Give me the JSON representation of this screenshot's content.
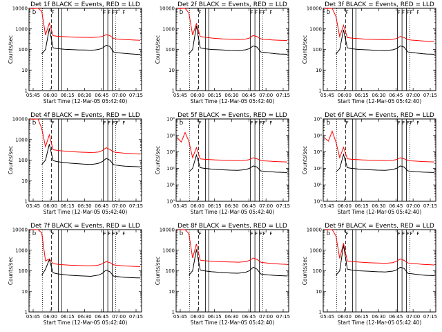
{
  "chart_data": [
    {
      "type": "line",
      "title": "Det 1f BLACK = Events, RED = LLD",
      "xlabel": "Start Time (12-Mar-05 05:42:40)",
      "ylabel": "Counts/sec",
      "yscale": "log",
      "ytick_labels": [
        "1",
        "10",
        "100",
        "1000",
        "10000"
      ],
      "ylim": [
        1,
        10000
      ],
      "xtick_labels": [
        "05:45",
        "06:00",
        "06:15",
        "06:30",
        "06:45",
        "07:00",
        "07:15"
      ],
      "marker_letters": [
        "D",
        "F",
        "F",
        "F",
        "F",
        "F",
        "F"
      ],
      "series": [
        {
          "color": "#000000",
          "values": [
            null,
            null,
            null,
            60,
            100,
            1050,
            120,
            110,
            106,
            102,
            100,
            98,
            96,
            95,
            94,
            93,
            92,
            95,
            100,
            115,
            160,
            140,
            75,
            70,
            67,
            64,
            62,
            60,
            58,
            57
          ]
        },
        {
          "color": "#ff0000",
          "values": [
            9800,
            9800,
            10500,
            7200,
            500,
            1900,
            470,
            440,
            430,
            420,
            410,
            400,
            395,
            390,
            388,
            386,
            384,
            390,
            400,
            430,
            520,
            470,
            340,
            320,
            310,
            300,
            295,
            290,
            285,
            280
          ]
        }
      ]
    },
    {
      "type": "line",
      "title": "Det 2f BLACK = Events, RED = LLD",
      "xlabel": "Start Time (12-Mar-05 05:42:40)",
      "ylabel": "Counts/sec",
      "yscale": "log",
      "ytick_labels": [
        "1",
        "10",
        "100",
        "1000",
        "10000"
      ],
      "ylim": [
        1,
        10000
      ],
      "xtick_labels": [
        "05:45",
        "06:00",
        "06:15",
        "06:30",
        "06:45",
        "07:00",
        "07:15"
      ],
      "marker_letters": [
        "D",
        "F",
        "F",
        "F",
        "F",
        "F",
        "F"
      ],
      "series": [
        {
          "color": "#000000",
          "values": [
            null,
            null,
            null,
            60,
            100,
            1400,
            120,
            110,
            104,
            100,
            98,
            96,
            94,
            92,
            90,
            89,
            88,
            92,
            96,
            110,
            150,
            130,
            75,
            72,
            68,
            65,
            62,
            60,
            59,
            58
          ]
        },
        {
          "color": "#ff0000",
          "values": [
            9800,
            9800,
            10500,
            6000,
            500,
            1800,
            430,
            400,
            380,
            360,
            345,
            335,
            325,
            320,
            315,
            310,
            305,
            310,
            320,
            360,
            480,
            420,
            330,
            310,
            300,
            290,
            285,
            280,
            275,
            270
          ]
        }
      ]
    },
    {
      "type": "line",
      "title": "Det 3f BLACK = Events, RED = LLD",
      "xlabel": "Start Time (12-Mar-05 05:42:40)",
      "ylabel": "Counts/sec",
      "yscale": "log",
      "ytick_labels": [
        "1",
        "10",
        "100",
        "1000",
        "10000"
      ],
      "ylim": [
        1,
        10000
      ],
      "xtick_labels": [
        "05:45",
        "06:00",
        "06:15",
        "06:30",
        "06:45",
        "07:00",
        "07:15"
      ],
      "marker_letters": [
        "D",
        "F",
        "F",
        "F",
        "F",
        "F",
        "F"
      ],
      "series": [
        {
          "color": "#000000",
          "values": [
            null,
            null,
            null,
            60,
            100,
            900,
            120,
            110,
            104,
            100,
            98,
            96,
            94,
            92,
            90,
            89,
            88,
            92,
            96,
            110,
            150,
            130,
            75,
            72,
            68,
            65,
            62,
            60,
            59,
            58
          ]
        },
        {
          "color": "#ff0000",
          "values": [
            9800,
            9800,
            10500,
            4000,
            420,
            1500,
            380,
            360,
            345,
            335,
            325,
            318,
            312,
            308,
            304,
            300,
            298,
            302,
            310,
            340,
            430,
            380,
            300,
            285,
            275,
            265,
            258,
            252,
            248,
            245
          ]
        }
      ]
    },
    {
      "type": "line",
      "title": "Det 4f BLACK = Events, RED = LLD",
      "xlabel": "Start Time (12-Mar-05 05:42:40)",
      "ylabel": "Counts/sec",
      "yscale": "log",
      "ytick_labels": [
        "1",
        "10",
        "100",
        "1000",
        "10000"
      ],
      "ylim": [
        1,
        10000
      ],
      "xtick_labels": [
        "05:45",
        "06:00",
        "06:15",
        "06:30",
        "06:45",
        "07:00",
        "07:15"
      ],
      "marker_letters": [
        "D",
        "F",
        "F",
        "F",
        "F",
        "F",
        "F"
      ],
      "series": [
        {
          "color": "#000000",
          "values": [
            null,
            null,
            null,
            60,
            100,
            600,
            95,
            85,
            80,
            76,
            73,
            70,
            68,
            66,
            64,
            63,
            62,
            65,
            70,
            85,
            120,
            100,
            60,
            56,
            53,
            51,
            50,
            49,
            48,
            47
          ]
        },
        {
          "color": "#ff0000",
          "values": [
            9800,
            9800,
            10500,
            3500,
            450,
            1700,
            320,
            300,
            285,
            275,
            265,
            258,
            252,
            246,
            242,
            238,
            236,
            240,
            250,
            290,
            400,
            330,
            250,
            235,
            225,
            215,
            210,
            205,
            200,
            198
          ]
        }
      ]
    },
    {
      "type": "line",
      "title": "Det 5f BLACK = Events, RED = LLD",
      "xlabel": "Start Time (12-Mar-05 05:42:40)",
      "ylabel": "Counts/sec",
      "yscale": "log",
      "ytick_labels": [
        "10⁰",
        "10¹",
        "10²",
        "10³",
        "10⁴",
        "10⁵"
      ],
      "ylim": [
        1,
        100000
      ],
      "xtick_labels": [
        "05:45",
        "06:00",
        "06:15",
        "06:30",
        "06:45",
        "07:00",
        "07:15"
      ],
      "marker_letters": [
        "D",
        "F",
        "F",
        "F",
        "F",
        "F",
        "F"
      ],
      "series": [
        {
          "color": "#000000",
          "values": [
            null,
            null,
            null,
            60,
            100,
            650,
            110,
            100,
            95,
            90,
            87,
            84,
            82,
            80,
            78,
            77,
            76,
            80,
            85,
            100,
            140,
            120,
            70,
            66,
            63,
            61,
            59,
            58,
            57,
            56
          ]
        },
        {
          "color": "#ff0000",
          "values": [
            7000,
            4000,
            15000,
            4500,
            450,
            1800,
            380,
            360,
            345,
            335,
            325,
            318,
            312,
            308,
            304,
            300,
            298,
            302,
            310,
            340,
            440,
            380,
            300,
            285,
            275,
            265,
            258,
            252,
            248,
            245
          ]
        }
      ]
    },
    {
      "type": "line",
      "title": "Det 6f BLACK = Events, RED = LLD",
      "xlabel": "Start Time (12-Mar-05 05:42:40)",
      "ylabel": "Counts/sec",
      "yscale": "log",
      "ytick_labels": [
        "10⁰",
        "10¹",
        "10²",
        "10³",
        "10⁴",
        "10⁵"
      ],
      "ylim": [
        1,
        100000
      ],
      "xtick_labels": [
        "05:45",
        "06:00",
        "06:15",
        "06:30",
        "06:45",
        "07:00",
        "07:15"
      ],
      "marker_letters": [
        "D",
        "F",
        "F",
        "F",
        "F",
        "F",
        "F"
      ],
      "series": [
        {
          "color": "#000000",
          "values": [
            null,
            null,
            null,
            60,
            100,
            700,
            110,
            100,
            95,
            90,
            87,
            84,
            82,
            80,
            78,
            77,
            76,
            80,
            85,
            100,
            140,
            120,
            70,
            66,
            63,
            61,
            59,
            58,
            57,
            56
          ]
        },
        {
          "color": "#ff0000",
          "values": [
            7000,
            4500,
            18000,
            4000,
            450,
            1900,
            380,
            360,
            345,
            335,
            325,
            318,
            312,
            308,
            304,
            300,
            298,
            302,
            310,
            340,
            440,
            380,
            300,
            285,
            275,
            265,
            258,
            252,
            248,
            245
          ]
        }
      ]
    },
    {
      "type": "line",
      "title": "Det 7f BLACK = Events, RED = LLD",
      "xlabel": "Start Time (12-Mar-05 05:42:40)",
      "ylabel": "Counts/sec",
      "yscale": "log",
      "ytick_labels": [
        "1",
        "10",
        "100",
        "1000",
        "10000"
      ],
      "ylim": [
        1,
        10000
      ],
      "xtick_labels": [
        "05:45",
        "06:00",
        "06:15",
        "06:30",
        "06:45",
        "07:00",
        "07:15"
      ],
      "marker_letters": [
        "D",
        "F",
        "F",
        "F",
        "F",
        "F",
        "F"
      ],
      "series": [
        {
          "color": "#000000",
          "values": [
            null,
            null,
            null,
            60,
            120,
            350,
            80,
            72,
            68,
            65,
            62,
            60,
            58,
            57,
            56,
            55,
            54,
            58,
            62,
            75,
            110,
            90,
            55,
            52,
            50,
            48,
            47,
            46,
            45,
            45
          ]
        },
        {
          "color": "#ff0000",
          "values": [
            9800,
            9800,
            10500,
            7000,
            300,
            380,
            220,
            210,
            200,
            195,
            190,
            186,
            183,
            180,
            178,
            176,
            175,
            180,
            190,
            220,
            280,
            250,
            195,
            185,
            178,
            172,
            168,
            165,
            163,
            160
          ]
        }
      ]
    },
    {
      "type": "line",
      "title": "Det 8f BLACK = Events, RED = LLD",
      "xlabel": "Start Time (12-Mar-05 05:42:40)",
      "ylabel": "Counts/sec",
      "yscale": "log",
      "ytick_labels": [
        "1",
        "10",
        "100",
        "1000",
        "10000"
      ],
      "ylim": [
        1,
        10000
      ],
      "xtick_labels": [
        "05:45",
        "06:00",
        "06:15",
        "06:30",
        "06:45",
        "07:00",
        "07:15"
      ],
      "marker_letters": [
        "D",
        "F",
        "F",
        "F",
        "F",
        "F",
        "F"
      ],
      "series": [
        {
          "color": "#000000",
          "values": [
            null,
            null,
            null,
            60,
            100,
            1100,
            110,
            100,
            95,
            90,
            87,
            84,
            82,
            80,
            78,
            77,
            76,
            80,
            85,
            100,
            150,
            120,
            70,
            66,
            63,
            61,
            59,
            58,
            57,
            56
          ]
        },
        {
          "color": "#ff0000",
          "values": [
            9800,
            9800,
            10500,
            6500,
            420,
            2000,
            330,
            310,
            300,
            292,
            285,
            280,
            275,
            272,
            268,
            265,
            262,
            268,
            280,
            320,
            420,
            360,
            260,
            245,
            235,
            225,
            218,
            212,
            208,
            205
          ]
        }
      ]
    },
    {
      "type": "line",
      "title": "Det 9f BLACK = Events, RED = LLD",
      "xlabel": "Start Time (12-Mar-05 05:42:40)",
      "ylabel": "Counts/sec",
      "yscale": "log",
      "ytick_labels": [
        "1",
        "10",
        "100",
        "1000",
        "10000"
      ],
      "ylim": [
        1,
        10000
      ],
      "xtick_labels": [
        "05:45",
        "06:00",
        "06:15",
        "06:30",
        "06:45",
        "07:00",
        "07:15"
      ],
      "marker_letters": [
        "D",
        "F",
        "F",
        "F",
        "F",
        "F",
        "F"
      ],
      "series": [
        {
          "color": "#000000",
          "values": [
            null,
            null,
            null,
            60,
            100,
            1800,
            120,
            110,
            104,
            100,
            98,
            96,
            94,
            92,
            90,
            89,
            88,
            92,
            96,
            110,
            150,
            130,
            75,
            72,
            68,
            65,
            62,
            60,
            59,
            58
          ]
        },
        {
          "color": "#ff0000",
          "values": [
            9800,
            9800,
            10500,
            5000,
            400,
            2200,
            300,
            285,
            275,
            265,
            258,
            252,
            246,
            242,
            238,
            235,
            232,
            238,
            250,
            290,
            380,
            320,
            240,
            228,
            220,
            212,
            206,
            200,
            196,
            192
          ]
        }
      ]
    }
  ]
}
